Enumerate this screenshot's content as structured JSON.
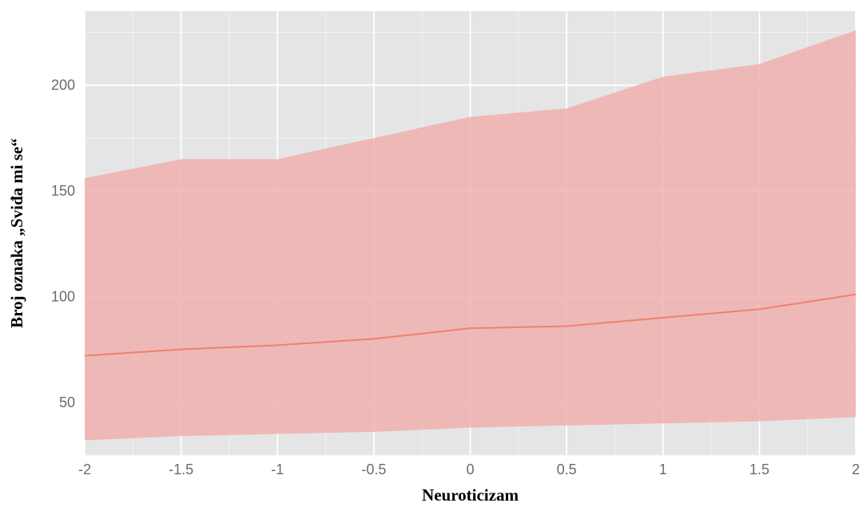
{
  "chart_data": {
    "type": "area",
    "title": "",
    "xlabel": "Neuroticizam",
    "ylabel": "Broj oznaka „Sviđa mi se“",
    "xlim": [
      -2,
      2
    ],
    "ylim": [
      25,
      235
    ],
    "x_ticks": [
      -2,
      -1.5,
      -1,
      -0.5,
      0,
      0.5,
      1,
      1.5,
      2
    ],
    "x_tick_labels": [
      "-2",
      "-1.5",
      "-1",
      "-0.5",
      "0",
      "0.5",
      "1",
      "1.5",
      "2"
    ],
    "y_ticks": [
      50,
      100,
      150,
      200
    ],
    "y_tick_labels": [
      "50",
      "100",
      "150",
      "200"
    ],
    "grid": true,
    "legend": "none",
    "x": [
      -2,
      -1.5,
      -1,
      -0.5,
      0,
      0.5,
      1,
      1.5,
      2
    ],
    "series": [
      {
        "values": [
          72,
          75,
          77,
          80,
          85,
          86,
          90,
          94,
          101
        ],
        "lower": [
          32,
          34,
          35,
          36,
          38,
          39,
          40,
          41,
          43
        ],
        "upper": [
          156,
          165,
          165,
          175,
          185,
          189,
          204,
          210,
          226
        ]
      }
    ],
    "colors": {
      "panel": "#e5e5e5",
      "grid": "#ffffff",
      "ribbon": "#f0b0ae",
      "line": "#f08070"
    }
  }
}
